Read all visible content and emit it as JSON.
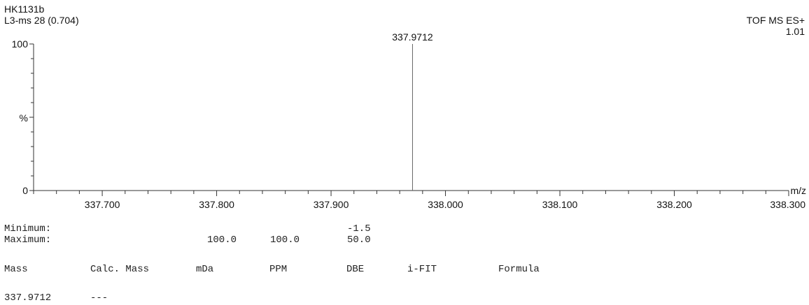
{
  "header": {
    "sample": "HK1131b",
    "scan": "L3-ms 28 (0.704)",
    "mode": "TOF MS ES+",
    "intensity": "1.01"
  },
  "chart_data": {
    "type": "bar",
    "title": "",
    "xlabel": "m/z",
    "ylabel": "%",
    "xlim": [
      337.64,
      338.3
    ],
    "ylim": [
      0,
      100
    ],
    "x_ticks_labeled": [
      "337.700",
      "337.800",
      "337.900",
      "338.000",
      "338.100",
      "338.200",
      "338.300"
    ],
    "y_ticks_labeled": [
      "0",
      "100"
    ],
    "peaks": [
      {
        "mz": 337.9712,
        "intensity": 100,
        "label": "337.9712"
      }
    ]
  },
  "limits": {
    "minimum_label": "Minimum:",
    "maximum_label": "Maximum:",
    "min_dbe": "-1.5",
    "max_mda": "100.0",
    "max_ppm": "100.0",
    "max_dbe": "50.0"
  },
  "table": {
    "headers": [
      "Mass",
      "Calc. Mass",
      "mDa",
      "PPM",
      "DBE",
      "i-FIT",
      "Formula"
    ],
    "row": {
      "mass": "337.9712",
      "calc": "---"
    }
  }
}
